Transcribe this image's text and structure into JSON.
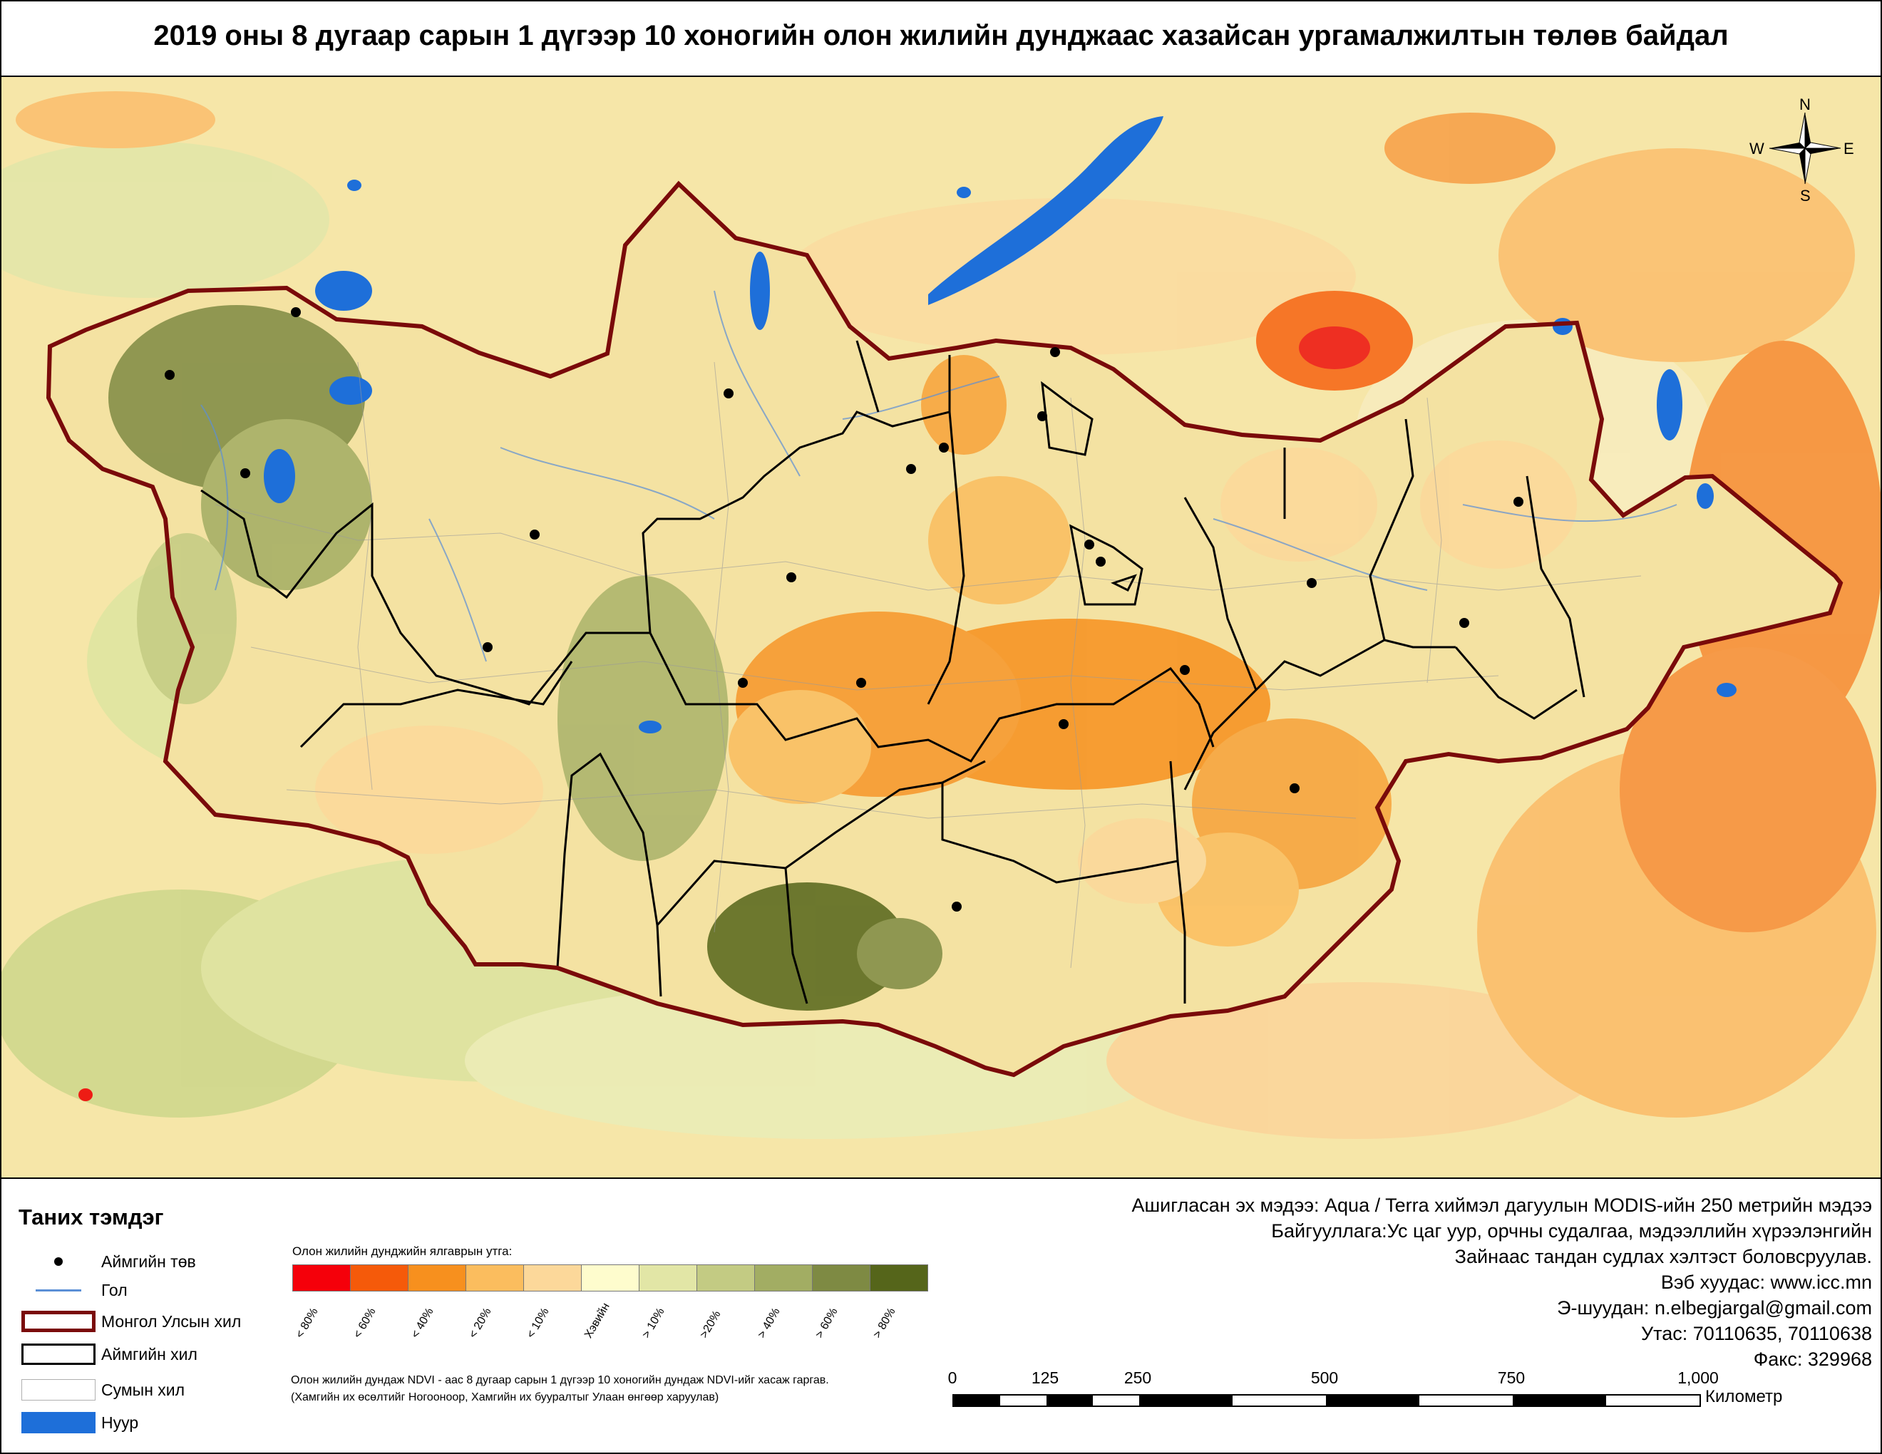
{
  "title": "2019 оны 8 дугаар сарын 1 дүгээр 10 хоногийн олон жилийн дунджаас хазайсан ургамалжилтын төлөв байдал",
  "compass": {
    "n": "N",
    "s": "S",
    "e": "E",
    "w": "W"
  },
  "legend": {
    "heading": "Таних тэмдэг",
    "items": [
      {
        "label": "Аймгийн төв",
        "icon": "aimag-center-dot"
      },
      {
        "label": "Гол",
        "icon": "river-line"
      },
      {
        "label": "Монгол Улсын хил",
        "icon": "country-border"
      },
      {
        "label": "Аймгийн хил",
        "icon": "aimag-border"
      },
      {
        "label": "Сумын хил",
        "icon": "sum-border"
      },
      {
        "label": "Нуур",
        "icon": "lake-fill"
      }
    ]
  },
  "scale": {
    "heading": "Олон жилийн дунджийн ялгаврын утга:",
    "classes": [
      {
        "label": "< 80%",
        "color": "#f5000a"
      },
      {
        "label": "< 60%",
        "color": "#f55a0a"
      },
      {
        "label": "< 40%",
        "color": "#f7901e"
      },
      {
        "label": "< 20%",
        "color": "#fbbd5e"
      },
      {
        "label": "< 10%",
        "color": "#fcd89a"
      },
      {
        "label": "Хэвийн",
        "color": "#fefccd"
      },
      {
        "label": "> 10%",
        "color": "#e2e6a6"
      },
      {
        "label": ">20%",
        "color": "#c3cb83"
      },
      {
        "label": "> 40%",
        "color": "#a2ad63"
      },
      {
        "label": "> 60%",
        "color": "#7e8a43"
      },
      {
        "label": "> 80%",
        "color": "#55651a"
      }
    ]
  },
  "notes": [
    "Олон жилийн дундаж NDVI - аас 8 дугаар сарын 1 дүгээр 10 хоногийн дундаж NDVI-ийг хасаж гаргав.",
    "(Хамгийн их өсөлтийг Ногооноор,  Хамгийн их бууралтыг Улаан өнгөөр харуулав)"
  ],
  "info": [
    "Ашигласан эх мэдээ: Aqua / Terra хиймэл дагуулын MODIS-ийн 250 метрийн мэдээ",
    "Байгууллага:Ус цаг уур, орчны судалгаа, мэдээллийн хүрээлэнгийн",
    "Зайнаас тандан судлах хэлтэст боловсруулав.",
    "Вэб хуудас: www.icc.mn",
    "Э-шуудан: n.elbegjargal@gmail.com",
    "Утас: 70110635, 70110638",
    "Факс: 329968"
  ],
  "scalebar": {
    "ticks": [
      "0",
      "125",
      "250",
      "500",
      "750",
      "1,000"
    ],
    "unit": "Километр"
  },
  "colors": {
    "country_border": "#7a0a0a",
    "aimag_border": "#000000",
    "river": "#5b8fd6",
    "lake": "#1e6fd9"
  }
}
